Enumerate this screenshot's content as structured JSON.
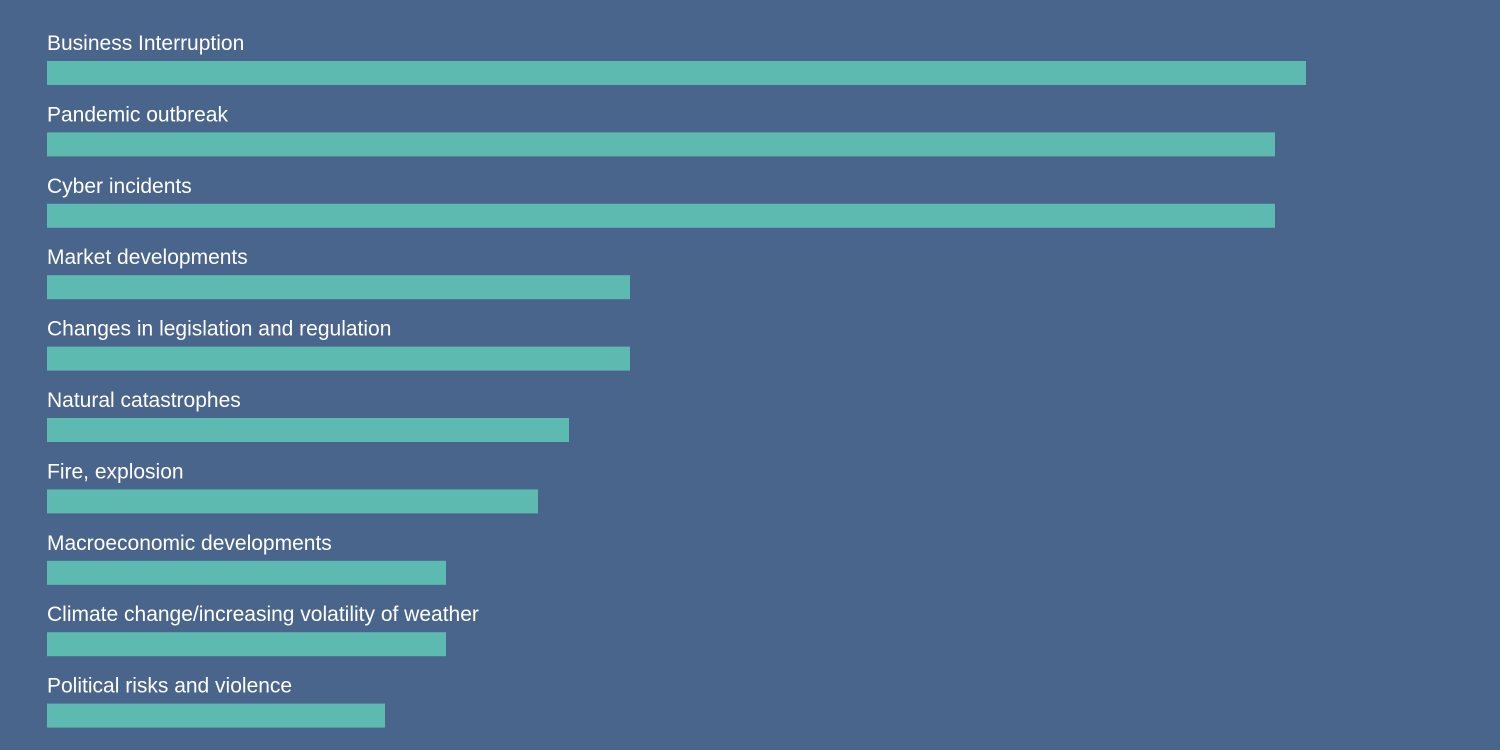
{
  "colors": {
    "background": "#4a658c",
    "bar": "#5dbab1",
    "label": "#ffffff"
  },
  "chart_data": {
    "type": "bar",
    "orientation": "horizontal",
    "title": "",
    "xlabel": "",
    "ylabel": "",
    "grid": false,
    "legend": "none",
    "xlim": [
      0,
      42
    ],
    "categories": [
      "Business Interruption",
      "Pandemic outbreak",
      "Cyber incidents",
      "Market developments",
      "Changes in legislation and regulation",
      "Natural catastrophes",
      "Fire, explosion",
      "Macroeconomic developments",
      "Climate change/increasing volatility of weather",
      "Political risks and violence"
    ],
    "values": [
      41,
      40,
      40,
      19,
      19,
      17,
      16,
      13,
      13,
      11
    ]
  }
}
